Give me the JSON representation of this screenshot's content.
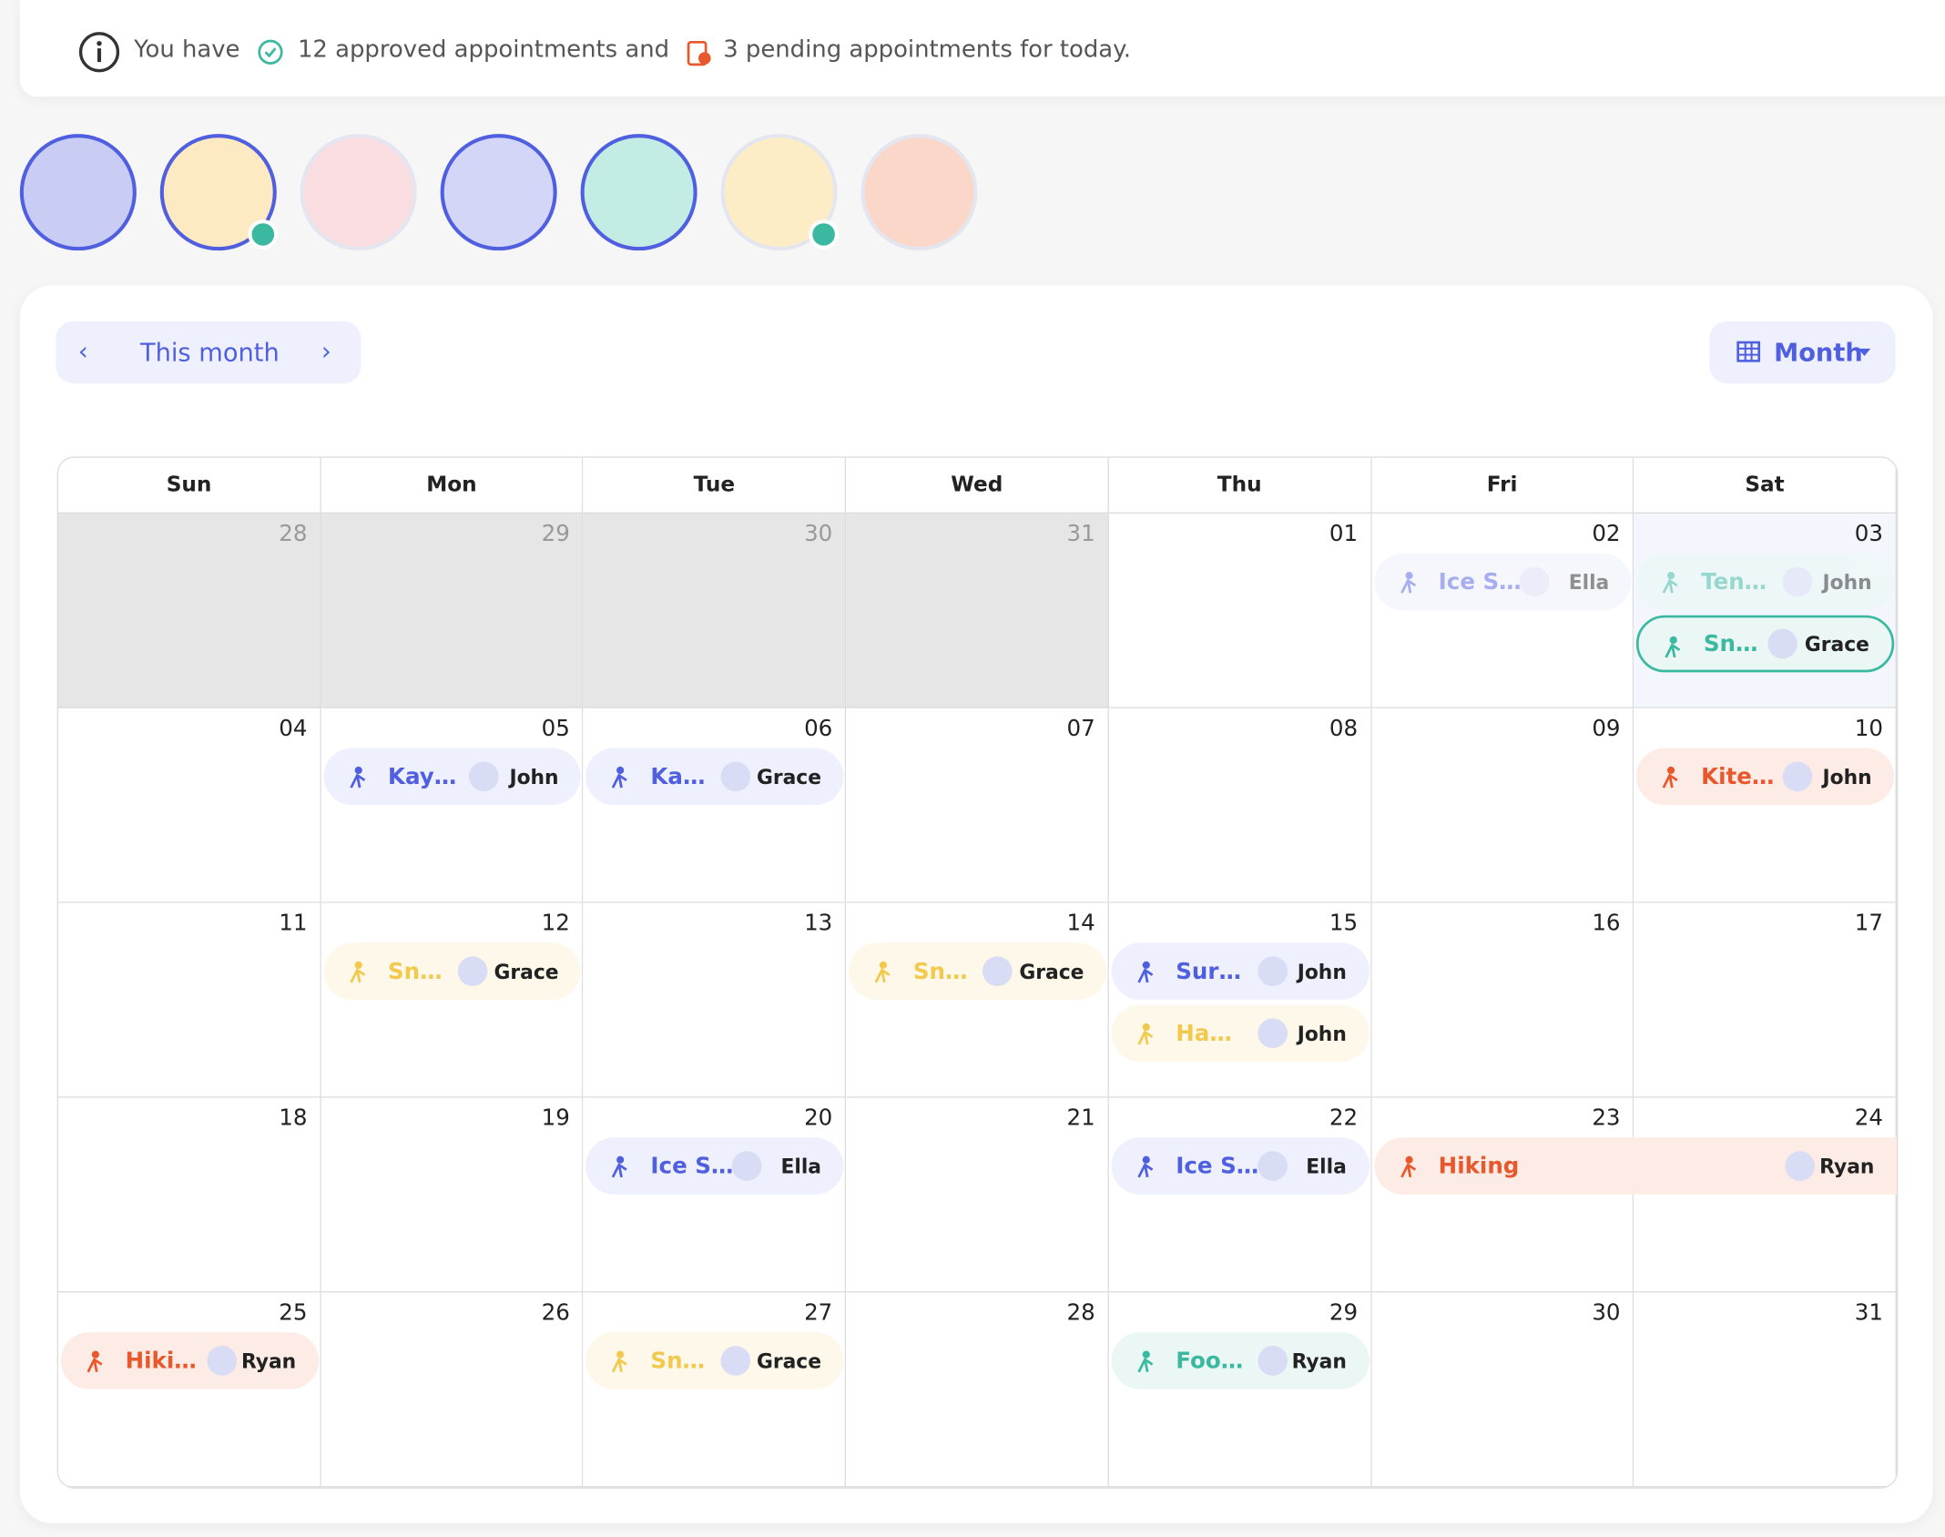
{
  "banner": {
    "prefix": "You have",
    "approved": "12 approved appointments and",
    "pending": "3 pending appointments for today."
  },
  "toolbar": {
    "period": "This month",
    "view": "Month"
  },
  "weekdays": [
    "Sun",
    "Mon",
    "Tue",
    "Wed",
    "Thu",
    "Fri",
    "Sat"
  ],
  "weeks": [
    [
      {
        "day": "28",
        "outside": true,
        "events": []
      },
      {
        "day": "29",
        "outside": true,
        "events": []
      },
      {
        "day": "30",
        "outside": true,
        "events": []
      },
      {
        "day": "31",
        "outside": true,
        "events": []
      },
      {
        "day": "01",
        "events": []
      },
      {
        "day": "02",
        "events": [
          {
            "title": "Ice S…",
            "person": "Ella",
            "tone": "blue",
            "state": "faded"
          }
        ]
      },
      {
        "day": "03",
        "events": [
          {
            "title": "Ten…",
            "person": "John",
            "tone": "teal",
            "state": "faded"
          },
          {
            "title": "Sn…",
            "person": "Grace",
            "tone": "teal",
            "state": "outlined"
          }
        ]
      }
    ],
    [
      {
        "day": "04",
        "events": []
      },
      {
        "day": "05",
        "events": [
          {
            "title": "Kay…",
            "person": "John",
            "tone": "blue"
          }
        ]
      },
      {
        "day": "06",
        "events": [
          {
            "title": "Ka…",
            "person": "Grace",
            "tone": "blue"
          }
        ]
      },
      {
        "day": "07",
        "events": []
      },
      {
        "day": "08",
        "events": []
      },
      {
        "day": "09",
        "events": []
      },
      {
        "day": "10",
        "events": [
          {
            "title": "Kite…",
            "person": "John",
            "tone": "orange"
          }
        ]
      }
    ],
    [
      {
        "day": "11",
        "events": []
      },
      {
        "day": "12",
        "events": [
          {
            "title": "Sn…",
            "person": "Grace",
            "tone": "yellow"
          }
        ]
      },
      {
        "day": "13",
        "events": []
      },
      {
        "day": "14",
        "events": [
          {
            "title": "Sn…",
            "person": "Grace",
            "tone": "yellow"
          }
        ]
      },
      {
        "day": "15",
        "events": [
          {
            "title": "Sur…",
            "person": "John",
            "tone": "blue"
          },
          {
            "title": "Ha…",
            "person": "John",
            "tone": "yellow"
          }
        ]
      },
      {
        "day": "16",
        "events": []
      },
      {
        "day": "17",
        "events": []
      }
    ],
    [
      {
        "day": "18",
        "events": []
      },
      {
        "day": "19",
        "events": []
      },
      {
        "day": "20",
        "events": [
          {
            "title": "Ice S…",
            "person": "Ella",
            "tone": "blue"
          }
        ]
      },
      {
        "day": "21",
        "events": []
      },
      {
        "day": "22",
        "events": [
          {
            "title": "Ice S…",
            "person": "Ella",
            "tone": "blue"
          }
        ]
      },
      {
        "day": "23",
        "events": [
          {
            "title": "Hiking",
            "person": "Ryan",
            "tone": "orange",
            "span": 2
          }
        ]
      },
      {
        "day": "24",
        "events": []
      }
    ],
    [
      {
        "day": "25",
        "events": [
          {
            "title": "Hiki…",
            "person": "Ryan",
            "tone": "orange"
          }
        ]
      },
      {
        "day": "26",
        "events": []
      },
      {
        "day": "27",
        "events": [
          {
            "title": "Sn…",
            "person": "Grace",
            "tone": "yellow"
          }
        ]
      },
      {
        "day": "28",
        "events": []
      },
      {
        "day": "29",
        "events": [
          {
            "title": "Foo…",
            "person": "Ryan",
            "tone": "teal"
          }
        ]
      },
      {
        "day": "30",
        "events": []
      },
      {
        "day": "31",
        "events": []
      }
    ]
  ]
}
